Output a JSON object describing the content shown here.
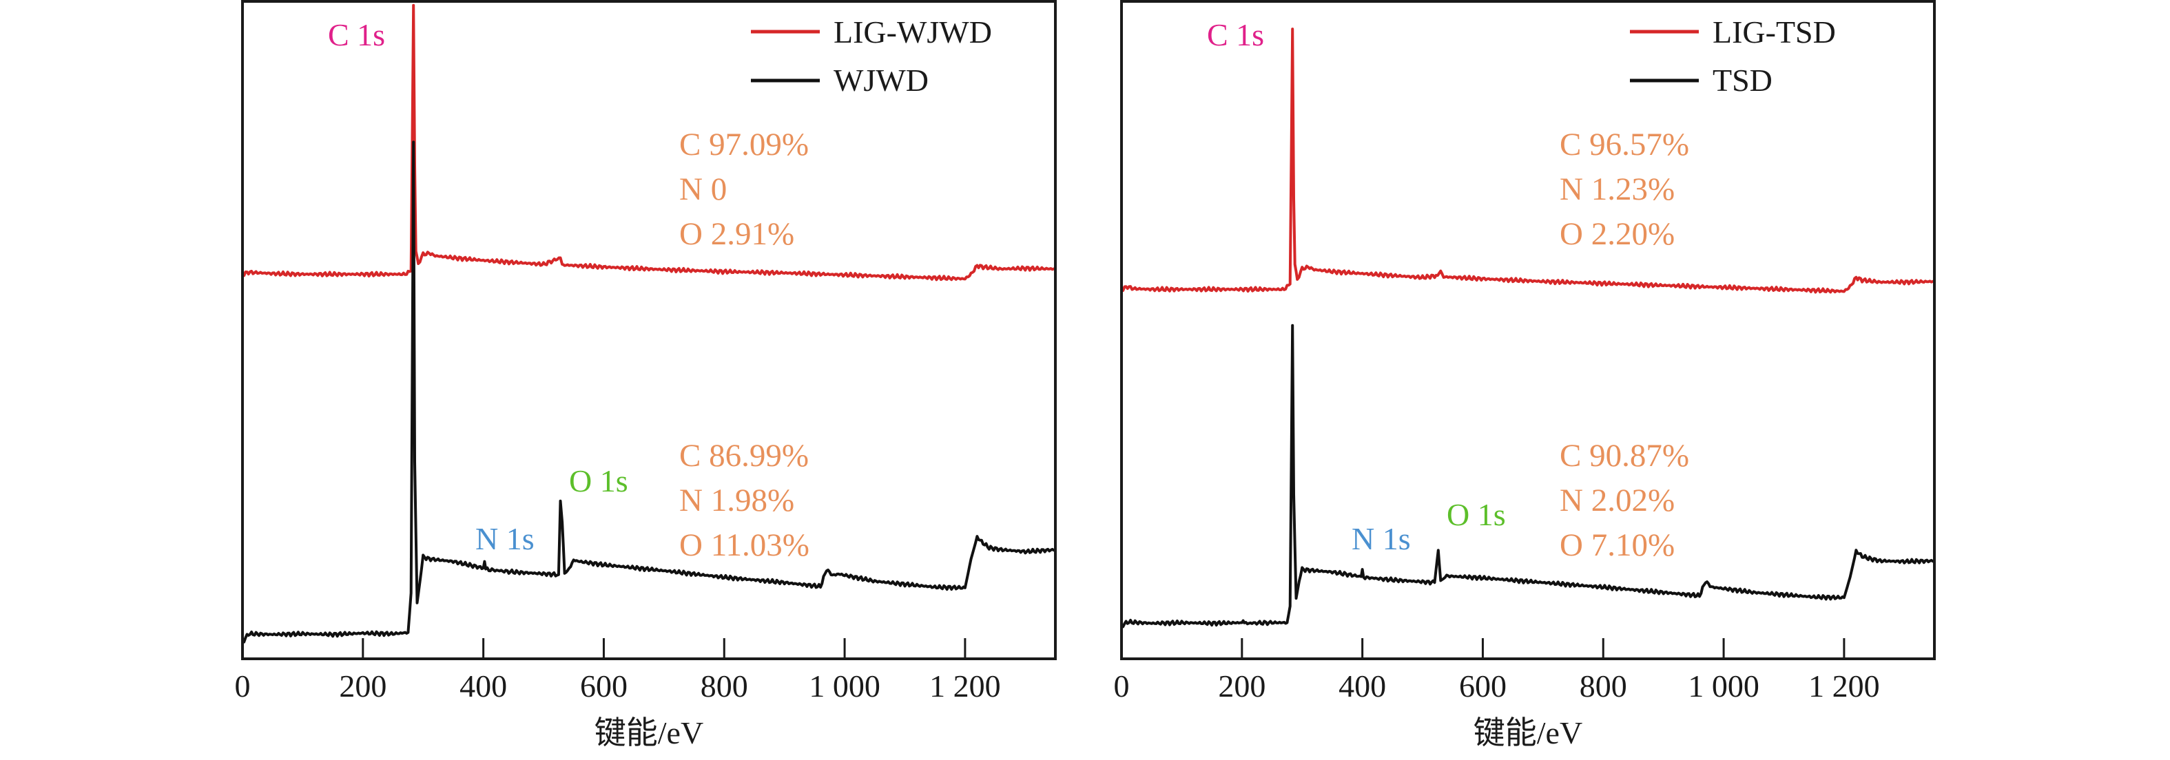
{
  "colors": {
    "red_series": "#d62728",
    "black_series": "#111111",
    "c1s_label": "#e0208a",
    "n1s_label": "#4a90d0",
    "o1s_label": "#5cbf2a",
    "composition": "#e8905a",
    "axis": "#1a1a1a"
  },
  "chart_data": [
    {
      "type": "line",
      "title": "",
      "xlabel": "键能/eV",
      "ylabel": "",
      "xlim": [
        0,
        1350
      ],
      "ylim": [
        0,
        100
      ],
      "xticks": [
        0,
        200,
        400,
        600,
        800,
        1000,
        1200
      ],
      "xtick_labels": [
        "0",
        "200",
        "400",
        "600",
        "800",
        "1 000",
        "1 200"
      ],
      "grid": false,
      "legend_position": "top-right",
      "series": [
        {
          "name": "LIG-WJWD",
          "color": "#d62728",
          "x": [
            0,
            10,
            50,
            100,
            200,
            270,
            280,
            284,
            286,
            288,
            292,
            300,
            310,
            320,
            350,
            400,
            500,
            528,
            531,
            535,
            600,
            700,
            800,
            900,
            1000,
            1100,
            1200,
            1210,
            1220,
            1230,
            1260,
            1300,
            1350
          ],
          "y": [
            58.5,
            58.8,
            58.6,
            58.5,
            58.5,
            58.5,
            59,
            99.4,
            75,
            62,
            60.2,
            61.5,
            61.7,
            61.3,
            61.0,
            60.6,
            60.0,
            61.0,
            60.0,
            59.9,
            59.6,
            59.2,
            58.9,
            58.7,
            58.4,
            58.1,
            57.8,
            58.5,
            59.8,
            59.6,
            59.3,
            59.4,
            59.3
          ]
        },
        {
          "name": "WJWD",
          "color": "#111111",
          "x": [
            0,
            10,
            50,
            100,
            150,
            200,
            250,
            275,
            280,
            284,
            286,
            290,
            295,
            300,
            310,
            350,
            400,
            402,
            404,
            450,
            525,
            528,
            531,
            535,
            540,
            550,
            560,
            600,
            700,
            800,
            900,
            960,
            970,
            980,
            990,
            1050,
            1150,
            1200,
            1210,
            1220,
            1230,
            1240,
            1260,
            1300,
            1350
          ],
          "y": [
            2.5,
            3.8,
            3.7,
            3.8,
            3.7,
            3.9,
            3.8,
            4.0,
            10,
            78.6,
            30,
            8.5,
            12,
            15.5,
            15.2,
            14.8,
            13.8,
            14.8,
            13.6,
            13.2,
            12.8,
            24,
            20.8,
            13.0,
            13.3,
            15.0,
            14.8,
            14.3,
            13.4,
            12.4,
            11.6,
            11.0,
            13.6,
            12.7,
            12.9,
            11.8,
            10.9,
            10.8,
            15.2,
            18.5,
            17.6,
            16.9,
            16.6,
            16.3,
            16.6
          ]
        }
      ],
      "annotations": {
        "peak_labels": [
          "C 1s",
          "N 1s",
          "O 1s"
        ],
        "composition_red": [
          "C 97.09%",
          "N 0",
          "O 2.91%"
        ],
        "composition_black": [
          "C 86.99%",
          "N 1.98%",
          "O 11.03%"
        ]
      }
    },
    {
      "type": "line",
      "title": "",
      "xlabel": "键能/eV",
      "ylabel": "",
      "xlim": [
        0,
        1350
      ],
      "ylim": [
        0,
        100
      ],
      "xticks": [
        0,
        200,
        400,
        600,
        800,
        1000,
        1200
      ],
      "xtick_labels": [
        "0",
        "200",
        "400",
        "600",
        "800",
        "1 000",
        "1 200"
      ],
      "grid": false,
      "legend_position": "top-right",
      "series": [
        {
          "name": "LIG-TSD",
          "color": "#d62728",
          "x": [
            0,
            10,
            20,
            50,
            100,
            200,
            270,
            280,
            284,
            286,
            288,
            292,
            300,
            310,
            320,
            350,
            400,
            500,
            525,
            530,
            535,
            600,
            700,
            800,
            900,
            1000,
            1100,
            1200,
            1210,
            1220,
            1230,
            1260,
            1300,
            1350
          ],
          "y": [
            56.2,
            56.6,
            56.3,
            56.2,
            56.2,
            56.2,
            56.2,
            57,
            95.8,
            70,
            60,
            57.8,
            59.3,
            59.6,
            59.2,
            58.9,
            58.6,
            58.0,
            58.3,
            59.0,
            58.1,
            57.8,
            57.4,
            57.1,
            56.8,
            56.5,
            56.2,
            55.9,
            56.6,
            58.0,
            57.6,
            57.3,
            57.3,
            57.4
          ]
        },
        {
          "name": "TSD",
          "color": "#111111",
          "x": [
            0,
            10,
            50,
            100,
            150,
            200,
            202,
            204,
            250,
            275,
            280,
            284,
            286,
            290,
            295,
            300,
            310,
            350,
            398,
            400,
            402,
            450,
            520,
            526,
            530,
            535,
            540,
            600,
            700,
            800,
            900,
            960,
            970,
            980,
            990,
            1050,
            1150,
            1200,
            1210,
            1220,
            1230,
            1240,
            1260,
            1300,
            1350
          ],
          "y": [
            5.0,
            5.6,
            5.4,
            5.5,
            5.4,
            5.5,
            5.8,
            5.4,
            5.5,
            5.5,
            8,
            50.7,
            25,
            9.2,
            11.8,
            13.6,
            13.5,
            13.2,
            12.5,
            13.6,
            12.4,
            12.0,
            11.6,
            16.5,
            11.9,
            12.2,
            12.6,
            12.3,
            11.6,
            10.9,
            10.1,
            9.6,
            11.8,
            10.9,
            10.8,
            10.1,
            9.4,
            9.3,
            12.4,
            16.4,
            15.6,
            15.3,
            14.9,
            14.8,
            14.9
          ]
        }
      ],
      "annotations": {
        "peak_labels": [
          "C 1s",
          "N 1s",
          "O 1s"
        ],
        "composition_red": [
          "C 96.57%",
          "N 1.23%",
          "O 2.20%"
        ],
        "composition_black": [
          "C 90.87%",
          "N 2.02%",
          "O 7.10%"
        ]
      }
    }
  ]
}
